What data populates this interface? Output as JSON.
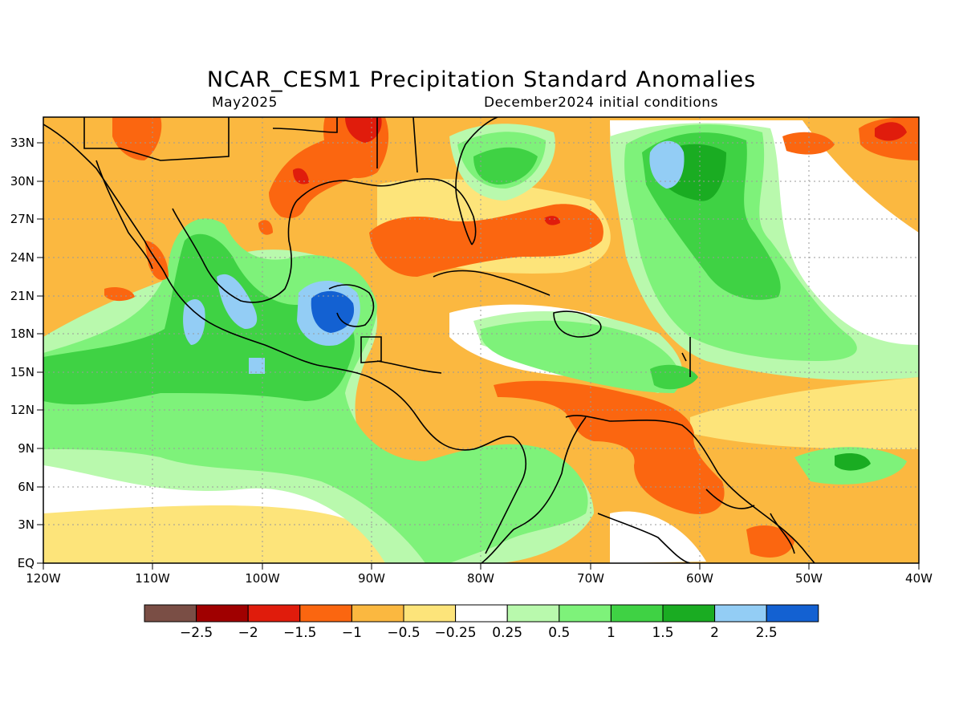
{
  "title": "NCAR_CESM1 Precipitation Standard Anomalies",
  "valid_month": "May2025",
  "init_conditions": "December2024 initial conditions",
  "map": {
    "lon_range": [
      -120,
      -40
    ],
    "lat_range": [
      0,
      35
    ],
    "lon_ticks": [
      "120W",
      "110W",
      "100W",
      "90W",
      "80W",
      "70W",
      "60W",
      "50W",
      "40W"
    ],
    "lat_ticks": [
      "EQ",
      "3N",
      "6N",
      "9N",
      "12N",
      "15N",
      "18N",
      "21N",
      "24N",
      "27N",
      "30N",
      "33N"
    ],
    "gridlines": true
  },
  "colorbar": {
    "colors": [
      "#7a4e45",
      "#a00000",
      "#e01c0c",
      "#fb6610",
      "#fbb840",
      "#fde47a",
      "#ffffff",
      "#b9f9ad",
      "#7ef27a",
      "#3fd244",
      "#1aac22",
      "#93cdf5",
      "#1361d2"
    ],
    "labels": [
      "-2.5",
      "-2",
      "-1.5",
      "-1",
      "-0.5",
      "-0.25",
      "0.25",
      "0.5",
      "1",
      "1.5",
      "2",
      "2.5"
    ]
  },
  "regions": [
    {
      "name": "eastern-pacific-wet",
      "color": "#7ef27a"
    },
    {
      "name": "southern-mexico-strong-wet",
      "color": "#1361d2"
    },
    {
      "name": "gulf-of-mexico-dry",
      "color": "#fb6610"
    },
    {
      "name": "northern-south-america-dry",
      "color": "#fb6610"
    },
    {
      "name": "western-atlantic-wet",
      "color": "#3fd244"
    },
    {
      "name": "caribbean-wet-band",
      "color": "#7ef27a"
    }
  ]
}
